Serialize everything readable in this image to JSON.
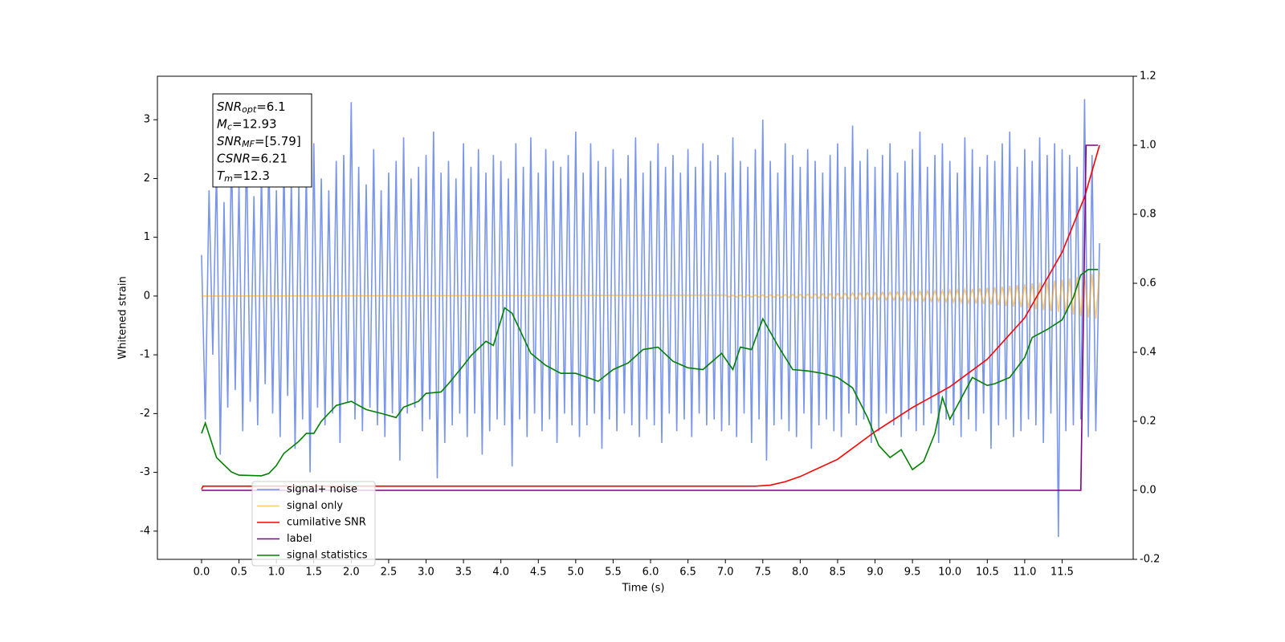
{
  "chart_data": {
    "type": "line",
    "xlabel": "Time (s)",
    "ylabel": "Whitened strain",
    "xlim": [
      -0.59,
      12.45
    ],
    "xticks": [
      {
        "value": 0,
        "label": "0.0"
      },
      0.5,
      {
        "value": 1,
        "label": "1.0"
      },
      1.5,
      {
        "value": 2,
        "label": "2.0"
      },
      2.5,
      {
        "value": 3,
        "label": "3.0"
      },
      3.5,
      {
        "value": 4,
        "label": "4.0"
      },
      4.5,
      {
        "value": 5,
        "label": "5.0"
      },
      5.5,
      {
        "value": 6,
        "label": "6.0"
      },
      6.5,
      {
        "value": 7,
        "label": "7.0"
      },
      7.5,
      {
        "value": 8,
        "label": "8.0"
      },
      8.5,
      {
        "value": 9,
        "label": "9.0"
      },
      9.5,
      {
        "value": 10,
        "label": "10.0"
      },
      10.5,
      {
        "value": 11,
        "label": "11.0"
      },
      11.5
    ],
    "ylim": [
      -4.48,
      3.74
    ],
    "yticks": [
      -4,
      -3,
      -2,
      -1,
      0,
      1,
      2,
      3
    ],
    "y2lim": [
      -0.2,
      1.2
    ],
    "y2ticks": [
      -0.2,
      {
        "value": 0,
        "label": "0.0"
      },
      0.2,
      0.4,
      0.6,
      0.8,
      {
        "value": 1,
        "label": "1.0"
      },
      1.2
    ],
    "legend": "lower left",
    "annotation": [
      {
        "text": "SNR",
        "sub": "opt",
        "value": "=6.1"
      },
      {
        "text": "M",
        "sub": "c",
        "value": "=12.93"
      },
      {
        "text": "SNR",
        "sub": "MF",
        "value": "=[5.79]"
      },
      {
        "text": "CSNR",
        "sub": "",
        "value": "=6.21"
      },
      {
        "text": "T",
        "sub": "m",
        "value": "=12.3"
      }
    ],
    "series": [
      {
        "name": "signal+ noise",
        "color": "#4169e1",
        "alpha": 0.7,
        "x": [
          0,
          0.05,
          0.1,
          0.15,
          0.2,
          0.25,
          0.3,
          0.35,
          0.4,
          0.45,
          0.5,
          0.55,
          0.6,
          0.65,
          0.7,
          0.75,
          0.8,
          0.85,
          0.9,
          0.95,
          1,
          1.05,
          1.1,
          1.15,
          1.2,
          1.25,
          1.3,
          1.35,
          1.4,
          1.45,
          1.5,
          1.55,
          1.6,
          1.65,
          1.7,
          1.75,
          1.8,
          1.85,
          1.9,
          1.95,
          2,
          2.05,
          2.1,
          2.15,
          2.2,
          2.25,
          2.3,
          2.35,
          2.4,
          2.45,
          2.5,
          2.55,
          2.6,
          2.65,
          2.7,
          2.75,
          2.8,
          2.85,
          2.9,
          2.95,
          3,
          3.05,
          3.1,
          3.15,
          3.2,
          3.25,
          3.3,
          3.35,
          3.4,
          3.45,
          3.5,
          3.55,
          3.6,
          3.65,
          3.7,
          3.75,
          3.8,
          3.85,
          3.9,
          3.95,
          4,
          4.05,
          4.1,
          4.15,
          4.2,
          4.25,
          4.3,
          4.35,
          4.4,
          4.45,
          4.5,
          4.55,
          4.6,
          4.65,
          4.7,
          4.75,
          4.8,
          4.85,
          4.9,
          4.95,
          5,
          5.05,
          5.1,
          5.15,
          5.2,
          5.25,
          5.3,
          5.35,
          5.4,
          5.45,
          5.5,
          5.55,
          5.6,
          5.65,
          5.7,
          5.75,
          5.8,
          5.85,
          5.9,
          5.95,
          6,
          6.05,
          6.1,
          6.15,
          6.2,
          6.25,
          6.3,
          6.35,
          6.4,
          6.45,
          6.5,
          6.55,
          6.6,
          6.65,
          6.7,
          6.75,
          6.8,
          6.85,
          6.9,
          6.95,
          7,
          7.05,
          7.1,
          7.15,
          7.2,
          7.25,
          7.3,
          7.35,
          7.4,
          7.45,
          7.5,
          7.55,
          7.6,
          7.65,
          7.7,
          7.75,
          7.8,
          7.85,
          7.9,
          7.95,
          8,
          8.05,
          8.1,
          8.15,
          8.2,
          8.25,
          8.3,
          8.35,
          8.4,
          8.45,
          8.5,
          8.55,
          8.6,
          8.65,
          8.7,
          8.75,
          8.8,
          8.85,
          8.9,
          8.95,
          9,
          9.05,
          9.1,
          9.15,
          9.2,
          9.25,
          9.3,
          9.35,
          9.4,
          9.45,
          9.5,
          9.55,
          9.6,
          9.65,
          9.7,
          9.75,
          9.8,
          9.85,
          9.9,
          9.95,
          10,
          10.05,
          10.1,
          10.15,
          10.2,
          10.25,
          10.3,
          10.35,
          10.4,
          10.45,
          10.5,
          10.55,
          10.6,
          10.65,
          10.7,
          10.75,
          10.8,
          10.85,
          10.9,
          10.95,
          11,
          11.05,
          11.1,
          11.15,
          11.2,
          11.25,
          11.3,
          11.35,
          11.4,
          11.45,
          11.5,
          11.55,
          11.6,
          11.65,
          11.7,
          11.75,
          11.8,
          11.85,
          11.9,
          11.95,
          12
        ],
        "values": [
          0.7,
          -2.1,
          1.8,
          -1.0,
          2.2,
          -2.7,
          1.6,
          -1.9,
          2.5,
          -1.6,
          1.9,
          -2.3,
          2.6,
          -1.8,
          1.7,
          -2.2,
          2.1,
          -1.5,
          2.4,
          -2.0,
          1.8,
          -2.4,
          2.3,
          -1.7,
          2.0,
          -2.6,
          1.9,
          -2.1,
          2.2,
          -3.0,
          2.6,
          -1.9,
          2.0,
          -2.2,
          1.8,
          -2.0,
          2.3,
          -2.5,
          2.4,
          -1.8,
          3.3,
          -2.1,
          2.2,
          -2.3,
          1.9,
          -1.9,
          2.5,
          -2.2,
          1.8,
          -2.4,
          2.1,
          -2.0,
          2.3,
          -2.8,
          2.7,
          -2.0,
          2.0,
          -1.9,
          2.2,
          -2.3,
          2.4,
          -2.1,
          2.8,
          -3.1,
          2.1,
          -2.5,
          2.3,
          -2.2,
          2.0,
          -2.0,
          2.6,
          -2.4,
          2.2,
          -2.0,
          2.5,
          -2.7,
          2.1,
          -2.3,
          2.4,
          -2.1,
          2.3,
          -2.2,
          2.0,
          -2.9,
          2.6,
          -2.1,
          2.2,
          -2.4,
          2.7,
          -2.0,
          2.1,
          -2.3,
          2.5,
          -2.1,
          2.3,
          -2.5,
          2.2,
          -2.0,
          2.4,
          -2.2,
          2.8,
          -2.4,
          2.1,
          -2.2,
          2.6,
          -2.0,
          2.3,
          -2.6,
          2.2,
          -2.1,
          2.5,
          -2.3,
          2.0,
          -2.0,
          2.4,
          -2.2,
          2.7,
          -2.4,
          2.1,
          -2.1,
          2.3,
          -2.2,
          2.6,
          -2.5,
          2.2,
          -2.0,
          2.4,
          -2.3,
          2.1,
          -2.1,
          2.5,
          -2.4,
          2.2,
          -2.0,
          2.6,
          -2.2,
          2.3,
          -2.1,
          2.4,
          -2.3,
          2.1,
          -2.2,
          2.7,
          -2.4,
          2.3,
          -2.0,
          2.2,
          -2.5,
          2.5,
          -2.1,
          3.0,
          -2.8,
          2.3,
          -2.2,
          2.1,
          -2.1,
          2.6,
          -2.3,
          2.4,
          -2.4,
          2.2,
          -2.0,
          2.5,
          -2.6,
          2.3,
          -2.2,
          2.1,
          -2.1,
          2.4,
          -2.3,
          2.6,
          -2.4,
          2.2,
          -2.0,
          2.9,
          -2.2,
          2.3,
          -2.1,
          2.5,
          -2.5,
          2.2,
          -2.3,
          2.4,
          -2.0,
          2.6,
          -2.2,
          2.1,
          -2.4,
          2.3,
          -2.1,
          2.5,
          -2.3,
          2.8,
          -2.2,
          2.2,
          -2.0,
          2.4,
          -2.5,
          2.6,
          -2.1,
          2.3,
          -2.2,
          2.1,
          -2.4,
          2.7,
          -2.1,
          2.5,
          -2.3,
          2.2,
          -2.0,
          2.4,
          -2.6,
          2.3,
          -2.2,
          2.6,
          -2.1,
          2.8,
          -2.4,
          2.2,
          -2.3,
          2.5,
          -2.1,
          2.3,
          -2.2,
          2.7,
          -2.5,
          2.4,
          -2.0,
          2.6,
          -4.1,
          2.5,
          -2.3,
          2.4,
          -2.2,
          2.2,
          -2.1,
          3.35,
          -2.4,
          2.4,
          -2.3,
          0.9
        ]
      },
      {
        "name": "signal only",
        "color": "#ffa500",
        "alpha": 0.55,
        "x": [
          0,
          7,
          7.05,
          7.1,
          7.15,
          7.2,
          7.25,
          7.3,
          7.35,
          7.4,
          7.45,
          7.5,
          7.55,
          7.6,
          7.65,
          7.7,
          7.75,
          7.8,
          7.85,
          7.9,
          7.95,
          8,
          8.05,
          8.1,
          8.15,
          8.2,
          8.25,
          8.3,
          8.35,
          8.4,
          8.45,
          8.5,
          8.55,
          8.6,
          8.65,
          8.7,
          8.75,
          8.8,
          8.85,
          8.9,
          8.95,
          9,
          9.05,
          9.1,
          9.15,
          9.2,
          9.25,
          9.3,
          9.35,
          9.4,
          9.45,
          9.5,
          9.55,
          9.6,
          9.65,
          9.7,
          9.75,
          9.8,
          9.85,
          9.9,
          9.95,
          10,
          10.05,
          10.1,
          10.15,
          10.2,
          10.25,
          10.3,
          10.35,
          10.4,
          10.45,
          10.5,
          10.55,
          10.6,
          10.65,
          10.7,
          10.75,
          10.8,
          10.85,
          10.9,
          10.95,
          11,
          11.05,
          11.1,
          11.15,
          11.2,
          11.25,
          11.3,
          11.35,
          11.4,
          11.45,
          11.5,
          11.55,
          11.6,
          11.65,
          11.7,
          11.75,
          11.8,
          11.85,
          11.9,
          11.95,
          12
        ],
        "values": [
          0,
          0.015,
          -0.015,
          0.016,
          -0.016,
          0.017,
          -0.017,
          0.018,
          -0.018,
          0.019,
          -0.019,
          0.02,
          -0.021,
          0.022,
          -0.023,
          0.024,
          -0.025,
          0.026,
          -0.027,
          0.028,
          -0.029,
          0.03,
          -0.031,
          0.033,
          -0.034,
          0.036,
          -0.037,
          0.039,
          -0.04,
          0.042,
          -0.043,
          0.045,
          -0.047,
          0.048,
          -0.05,
          0.051,
          -0.053,
          0.054,
          -0.056,
          0.057,
          -0.059,
          0.06,
          -0.062,
          0.064,
          -0.066,
          0.068,
          -0.07,
          0.072,
          -0.074,
          0.076,
          -0.078,
          0.08,
          -0.082,
          0.084,
          -0.086,
          0.088,
          -0.09,
          0.092,
          -0.094,
          0.096,
          -0.098,
          0.1,
          -0.104,
          0.108,
          -0.112,
          0.116,
          -0.12,
          0.124,
          -0.128,
          0.132,
          -0.136,
          0.14,
          -0.146,
          0.152,
          -0.158,
          0.164,
          -0.17,
          0.176,
          -0.182,
          0.188,
          -0.194,
          0.2,
          -0.208,
          0.216,
          -0.224,
          0.232,
          -0.24,
          0.248,
          -0.256,
          0.264,
          -0.272,
          0.28,
          -0.292,
          0.304,
          -0.316,
          0.328,
          -0.34,
          0.352,
          -0.364,
          0.376,
          -0.388,
          0.4
        ]
      },
      {
        "name": "cumilative SNR",
        "color": "#ff0000",
        "axis": "y2",
        "x": [
          0,
          0.02,
          7.4,
          7.6,
          7.8,
          8,
          8.5,
          9,
          9.5,
          10,
          10.5,
          11,
          11.5,
          11.8,
          12
        ],
        "values": [
          0.003,
          0.012,
          0.012,
          0.015,
          0.025,
          0.04,
          0.09,
          0.17,
          0.24,
          0.3,
          0.38,
          0.5,
          0.69,
          0.85,
          1.0
        ]
      },
      {
        "name": "label",
        "color": "#800080",
        "axis": "y2",
        "x": [
          0,
          11.75,
          11.82,
          11.98
        ],
        "values": [
          0,
          0,
          1,
          1
        ]
      },
      {
        "name": "signal statistics",
        "color": "#008000",
        "axis": "y2",
        "x": [
          0,
          0.05,
          0.2,
          0.4,
          0.5,
          0.8,
          0.9,
          1,
          1.1,
          1.3,
          1.4,
          1.5,
          1.6,
          1.8,
          2,
          2.2,
          2.4,
          2.6,
          2.7,
          2.9,
          3,
          3.2,
          3.3,
          3.5,
          3.6,
          3.8,
          3.9,
          4.05,
          4.15,
          4.4,
          4.6,
          4.8,
          5,
          5.3,
          5.5,
          5.7,
          5.9,
          6.1,
          6.3,
          6.5,
          6.7,
          6.95,
          7.1,
          7.2,
          7.35,
          7.5,
          7.7,
          7.9,
          8.1,
          8.3,
          8.5,
          8.7,
          8.9,
          9.05,
          9.2,
          9.35,
          9.5,
          9.65,
          9.8,
          9.9,
          10,
          10.1,
          10.3,
          10.5,
          10.6,
          10.8,
          11,
          11.1,
          11.3,
          11.5,
          11.65,
          11.75,
          11.85,
          11.98
        ],
        "values": [
          0.165,
          0.195,
          0.095,
          0.053,
          0.044,
          0.042,
          0.049,
          0.072,
          0.107,
          0.142,
          0.165,
          0.165,
          0.2,
          0.246,
          0.258,
          0.234,
          0.223,
          0.211,
          0.241,
          0.258,
          0.281,
          0.285,
          0.309,
          0.362,
          0.39,
          0.432,
          0.42,
          0.529,
          0.513,
          0.397,
          0.362,
          0.339,
          0.339,
          0.316,
          0.35,
          0.369,
          0.408,
          0.415,
          0.374,
          0.355,
          0.35,
          0.397,
          0.35,
          0.415,
          0.408,
          0.497,
          0.42,
          0.35,
          0.346,
          0.339,
          0.327,
          0.297,
          0.211,
          0.13,
          0.095,
          0.118,
          0.06,
          0.084,
          0.165,
          0.269,
          0.206,
          0.246,
          0.327,
          0.304,
          0.309,
          0.327,
          0.385,
          0.443,
          0.466,
          0.494,
          0.559,
          0.624,
          0.64,
          0.64
        ]
      }
    ]
  }
}
